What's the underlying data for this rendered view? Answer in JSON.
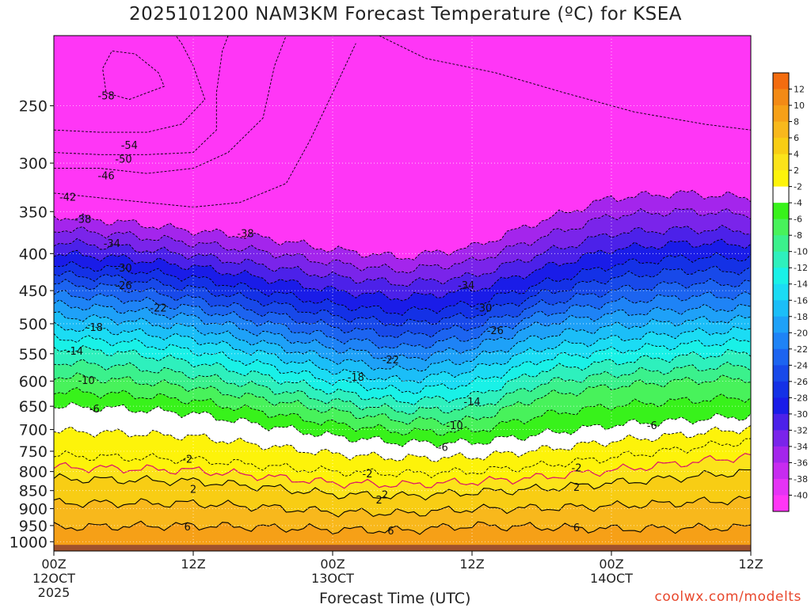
{
  "chart_data": {
    "type": "heatmap",
    "title": "2025101200 NAM3KM Forecast Temperature (ºC) for KSEA",
    "xlabel": "Forecast Time (UTC)",
    "ylabel": "",
    "y_scale": "log-pressure",
    "ylim": [
      1030,
      200
    ],
    "xlim": [
      0,
      60
    ],
    "grid": true,
    "y_ticks": [
      "250",
      "300",
      "350",
      "400",
      "450",
      "500",
      "550",
      "600",
      "650",
      "700",
      "750",
      "800",
      "850",
      "900",
      "950",
      "1000"
    ],
    "x_ticks": [
      {
        "label": "00Z",
        "sub": "12OCT",
        "sub2": "2025",
        "hour": 0
      },
      {
        "label": "12Z",
        "sub": "",
        "sub2": "",
        "hour": 12
      },
      {
        "label": "00Z",
        "sub": "13OCT",
        "sub2": "",
        "hour": 24
      },
      {
        "label": "12Z",
        "sub": "",
        "sub2": "",
        "hour": 36
      },
      {
        "label": "00Z",
        "sub": "14OCT",
        "sub2": "",
        "hour": 48
      },
      {
        "label": "12Z",
        "sub": "",
        "sub2": "",
        "hour": 60
      }
    ],
    "colorbar": {
      "labels": [
        "12",
        "10",
        "8",
        "6",
        "4",
        "2",
        "-2",
        "-4",
        "-6",
        "-8",
        "-10",
        "-12",
        "-14",
        "-16",
        "-18",
        "-20",
        "-22",
        "-24",
        "-26",
        "-28",
        "-30",
        "-32",
        "-34",
        "-36",
        "-38",
        "-40"
      ],
      "colors": [
        "#f36c0f",
        "#f38a15",
        "#f6a017",
        "#f8b81c",
        "#f8cd14",
        "#fbe31a",
        "#fdf30a",
        "#ffffff",
        "#38f21b",
        "#48f25b",
        "#3bf18c",
        "#2ef0bd",
        "#19f1e7",
        "#1bdcf4",
        "#1bbef8",
        "#1ea1f8",
        "#1e83f6",
        "#1c64f0",
        "#1849e9",
        "#1431e6",
        "#1a1ce8",
        "#4c21e9",
        "#7a24ea",
        "#a425ec",
        "#c72bf0",
        "#e533f5",
        "#ff36f6"
      ]
    },
    "ground_level": 1010,
    "contour_levels": [
      -58,
      -54,
      -50,
      -46,
      -42,
      -38,
      -34,
      -30,
      -26,
      -22,
      -18,
      -14,
      -10,
      -6,
      -2,
      2,
      6
    ],
    "contour_labels": [
      "-58",
      "-54",
      "-50",
      "-46",
      "-42",
      "-38",
      "-38",
      "-34",
      "-34",
      "-30",
      "-30",
      "-26",
      "-26",
      "-22",
      "-22",
      "-18",
      "-18",
      "-14",
      "-14",
      "-10",
      "-10",
      "-6",
      "-6",
      "-6",
      "-2",
      "-2",
      "-2",
      "2",
      "2",
      "2",
      "2",
      "6",
      "6",
      "6"
    ],
    "series": [
      {
        "name": "-38",
        "x": [
          0,
          6,
          12,
          18,
          24,
          30,
          36,
          42,
          48,
          54,
          60
        ],
        "p": [
          355,
          362,
          372,
          380,
          395,
          405,
          392,
          360,
          335,
          330,
          335
        ]
      },
      {
        "name": "-34",
        "x": [
          0,
          6,
          12,
          18,
          24,
          30,
          36,
          42,
          48,
          54,
          60
        ],
        "p": [
          385,
          392,
          402,
          415,
          430,
          440,
          430,
          400,
          375,
          370,
          372
        ]
      },
      {
        "name": "-30",
        "x": [
          0,
          6,
          12,
          18,
          24,
          30,
          36,
          42,
          48,
          54,
          60
        ],
        "p": [
          415,
          420,
          432,
          450,
          470,
          482,
          470,
          440,
          415,
          405,
          405
        ]
      },
      {
        "name": "-26",
        "x": [
          0,
          6,
          12,
          18,
          24,
          30,
          36,
          42,
          48,
          54,
          60
        ],
        "p": [
          440,
          446,
          462,
          482,
          505,
          520,
          505,
          470,
          450,
          440,
          440
        ]
      },
      {
        "name": "-22",
        "x": [
          0,
          6,
          12,
          18,
          24,
          30,
          36,
          42,
          48,
          54,
          60
        ],
        "p": [
          470,
          478,
          490,
          515,
          540,
          560,
          540,
          500,
          485,
          478,
          475
        ]
      },
      {
        "name": "-18",
        "x": [
          0,
          6,
          12,
          18,
          24,
          30,
          36,
          42,
          48,
          54,
          60
        ],
        "p": [
          505,
          512,
          525,
          550,
          580,
          600,
          580,
          540,
          525,
          515,
          510
        ]
      },
      {
        "name": "-14",
        "x": [
          0,
          6,
          12,
          18,
          24,
          30,
          36,
          42,
          48,
          54,
          60
        ],
        "p": [
          540,
          548,
          565,
          590,
          620,
          640,
          630,
          580,
          565,
          555,
          548
        ]
      },
      {
        "name": "-10",
        "x": [
          0,
          6,
          12,
          18,
          24,
          30,
          36,
          42,
          48,
          54,
          60
        ],
        "p": [
          590,
          598,
          612,
          635,
          660,
          680,
          680,
          630,
          610,
          600,
          595
        ]
      },
      {
        "name": "-6",
        "x": [
          0,
          6,
          12,
          18,
          24,
          30,
          36,
          42,
          48,
          54,
          60
        ],
        "p": [
          650,
          655,
          665,
          690,
          715,
          730,
          730,
          710,
          690,
          680,
          670
        ]
      },
      {
        "name": "-2",
        "x": [
          0,
          6,
          12,
          18,
          24,
          30,
          36,
          42,
          48,
          54,
          60
        ],
        "p": [
          760,
          765,
          770,
          785,
          800,
          805,
          800,
          785,
          765,
          745,
          725
        ]
      },
      {
        "name": "2",
        "x": [
          0,
          6,
          12,
          18,
          24,
          30,
          36,
          42,
          48,
          54,
          60
        ],
        "p": [
          818,
          822,
          825,
          840,
          860,
          865,
          855,
          845,
          830,
          815,
          800
        ]
      },
      {
        "name": "6",
        "x": [
          0,
          6,
          12,
          18,
          24,
          30,
          36,
          42,
          48,
          54,
          60
        ],
        "p": [
          955,
          952,
          950,
          955,
          962,
          965,
          950,
          955,
          960,
          958,
          955
        ]
      }
    ]
  },
  "credit": "coolwx.com/modelts"
}
